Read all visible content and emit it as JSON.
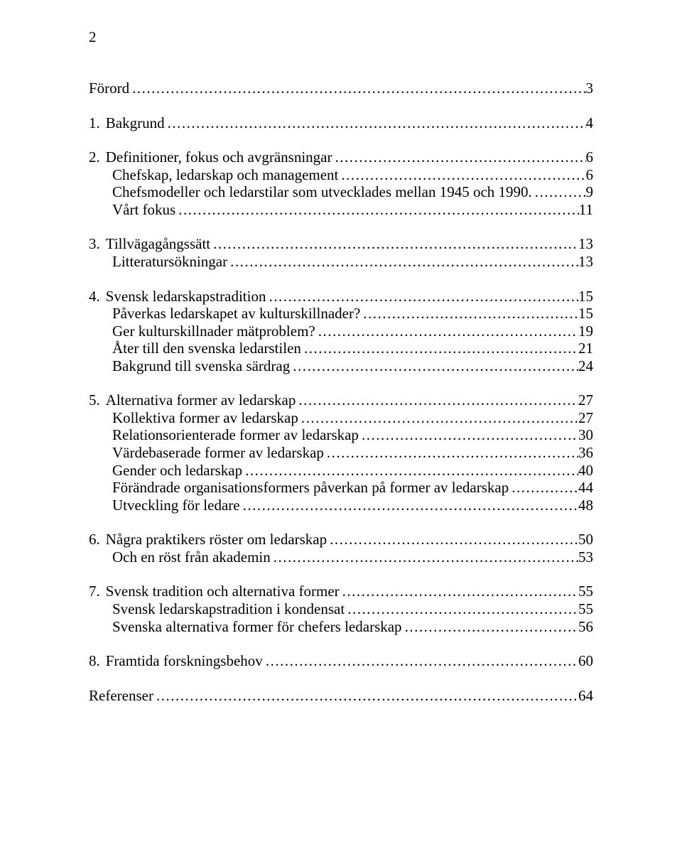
{
  "page_number": "2",
  "entries": [
    {
      "num": "",
      "label": "Förord",
      "page": "3",
      "level": 0,
      "section": true
    },
    {
      "num": "1.",
      "label": "Bakgrund",
      "page": "4",
      "level": 0,
      "section": true
    },
    {
      "num": "2.",
      "label": "Definitioner, fokus och avgränsningar",
      "page": "6",
      "level": 0,
      "section": true
    },
    {
      "num": "",
      "label": "Chefskap, ledarskap och management",
      "page": "6",
      "level": 1,
      "section": false
    },
    {
      "num": "",
      "label": "Chefsmodeller och ledarstilar som utvecklades mellan 1945 och 1990.",
      "page": "9",
      "level": 1,
      "section": false
    },
    {
      "num": "",
      "label": "Vårt fokus",
      "page": "11",
      "level": 1,
      "section": false
    },
    {
      "num": "3.",
      "label": "Tillvägagångssätt",
      "page": "13",
      "level": 0,
      "section": true
    },
    {
      "num": "",
      "label": "Litteratursökningar",
      "page": "13",
      "level": 1,
      "section": false
    },
    {
      "num": "4.",
      "label": "Svensk ledarskapstradition",
      "page": "15",
      "level": 0,
      "section": true
    },
    {
      "num": "",
      "label": "Påverkas ledarskapet av kulturskillnader?",
      "page": "15",
      "level": 1,
      "section": false
    },
    {
      "num": "",
      "label": "Ger kulturskillnader mätproblem?",
      "page": "19",
      "level": 1,
      "section": false
    },
    {
      "num": "",
      "label": "Åter till den svenska ledarstilen",
      "page": "21",
      "level": 1,
      "section": false
    },
    {
      "num": "",
      "label": "Bakgrund till svenska särdrag",
      "page": "24",
      "level": 1,
      "section": false
    },
    {
      "num": "5.",
      "label": "Alternativa former av ledarskap",
      "page": "27",
      "level": 0,
      "section": true
    },
    {
      "num": "",
      "label": "Kollektiva former av ledarskap",
      "page": "27",
      "level": 1,
      "section": false
    },
    {
      "num": "",
      "label": "Relationsorienterade former av ledarskap",
      "page": "30",
      "level": 1,
      "section": false
    },
    {
      "num": "",
      "label": "Värdebaserade former av ledarskap",
      "page": "36",
      "level": 1,
      "section": false
    },
    {
      "num": "",
      "label": "Gender och ledarskap",
      "page": "40",
      "level": 1,
      "section": false
    },
    {
      "num": "",
      "label": "Förändrade organisationsformers påverkan på former av ledarskap",
      "page": "44",
      "level": 1,
      "section": false
    },
    {
      "num": "",
      "label": "Utveckling för ledare",
      "page": "48",
      "level": 1,
      "section": false
    },
    {
      "num": "6.",
      "label": "Några praktikers röster om ledarskap",
      "page": "50",
      "level": 0,
      "section": true
    },
    {
      "num": "",
      "label": "Och en röst från akademin",
      "page": "53",
      "level": 1,
      "section": false
    },
    {
      "num": "7.",
      "label": "Svensk tradition och alternativa former",
      "page": "55",
      "level": 0,
      "section": true
    },
    {
      "num": "",
      "label": "Svensk ledarskapstradition i kondensat",
      "page": "55",
      "level": 1,
      "section": false
    },
    {
      "num": "",
      "label": "Svenska alternativa former för chefers ledarskap",
      "page": "56",
      "level": 1,
      "section": false
    },
    {
      "num": "8.",
      "label": "Framtida forskningsbehov",
      "page": "60",
      "level": 0,
      "section": true
    },
    {
      "num": "",
      "label": "Referenser",
      "page": "64",
      "level": 0,
      "section": true
    }
  ]
}
